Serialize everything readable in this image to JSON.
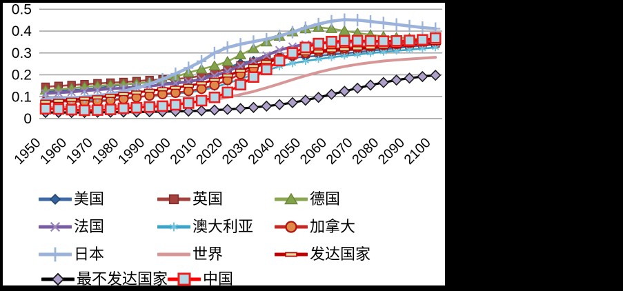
{
  "colors": {
    "page_background": "#000000",
    "panel_background": "#ffffff",
    "gridline": "#9a9a9a",
    "axis_text": "#000000"
  },
  "chart_data": {
    "type": "line",
    "title": "",
    "xlabel": "",
    "ylabel": "",
    "ylim": [
      0,
      0.5
    ],
    "grid": "horizontal-only",
    "legend_position": "bottom",
    "x": [
      1950,
      1955,
      1960,
      1965,
      1970,
      1975,
      1980,
      1985,
      1990,
      1995,
      2000,
      2005,
      2010,
      2015,
      2020,
      2025,
      2030,
      2035,
      2040,
      2045,
      2050,
      2055,
      2060,
      2065,
      2070,
      2075,
      2080,
      2085,
      2090,
      2095,
      2100
    ],
    "x_tick_labels": [
      "1950",
      "1960",
      "1970",
      "1980",
      "1990",
      "2000",
      "2010",
      "2020",
      "2030",
      "2040",
      "2050",
      "2060",
      "2070",
      "2080",
      "2090",
      "2100"
    ],
    "y_ticks": [
      0,
      0.1,
      0.2,
      0.3,
      0.4,
      0.5
    ],
    "y_tick_labels": [
      "0",
      "0.1",
      "0.2",
      "0.3",
      "0.4",
      "0.5"
    ],
    "series": [
      {
        "id": "usa",
        "name": "美国",
        "line_color": "#3E6BA5",
        "line_width": 2.6,
        "marker": {
          "shape": "diamond",
          "fill": "#33619E",
          "stroke": "#23476F",
          "stroke_width": 1.4,
          "size": 6
        },
        "values": [
          0.123,
          0.127,
          0.131,
          0.134,
          0.14,
          0.147,
          0.156,
          0.161,
          0.166,
          0.164,
          0.163,
          0.168,
          0.184,
          0.208,
          0.232,
          0.254,
          0.265,
          0.271,
          0.275,
          0.278,
          0.282,
          0.287,
          0.292,
          0.298,
          0.304,
          0.31,
          0.316,
          0.322,
          0.328,
          0.333,
          0.338
        ]
      },
      {
        "id": "uk",
        "name": "英国",
        "line_color": "#A6423E",
        "line_width": 2.6,
        "marker": {
          "shape": "square",
          "fill": "#A6423E",
          "stroke": "#7E2F2C",
          "stroke_width": 1.4,
          "size": 5.5
        },
        "values": [
          0.145,
          0.149,
          0.153,
          0.157,
          0.161,
          0.164,
          0.167,
          0.171,
          0.176,
          0.179,
          0.181,
          0.186,
          0.196,
          0.211,
          0.228,
          0.243,
          0.258,
          0.27,
          0.28,
          0.289,
          0.296,
          0.302,
          0.307,
          0.311,
          0.315,
          0.319,
          0.324,
          0.329,
          0.334,
          0.339,
          0.344
        ]
      },
      {
        "id": "germany",
        "name": "德国",
        "line_color": "#8AA64F",
        "line_width": 2.6,
        "marker": {
          "shape": "triangle",
          "fill": "#84A24A",
          "stroke": "#69853A",
          "stroke_width": 1.2,
          "size": 7
        },
        "values": [
          0.13,
          0.134,
          0.139,
          0.145,
          0.15,
          0.154,
          0.157,
          0.161,
          0.166,
          0.176,
          0.191,
          0.21,
          0.226,
          0.241,
          0.261,
          0.291,
          0.32,
          0.35,
          0.376,
          0.396,
          0.41,
          0.417,
          0.411,
          0.401,
          0.391,
          0.383,
          0.376,
          0.371,
          0.367,
          0.363,
          0.36
        ]
      },
      {
        "id": "france",
        "name": "法国",
        "line_color": "#7A5DA0",
        "line_width": 4,
        "marker": {
          "shape": "xcross",
          "fill": "none",
          "stroke": "#9A86BC",
          "stroke_width": 2,
          "size": 5.5
        },
        "values": [
          0.115,
          0.118,
          0.122,
          0.127,
          0.132,
          0.136,
          0.14,
          0.144,
          0.149,
          0.155,
          0.162,
          0.169,
          0.179,
          0.196,
          0.216,
          0.24,
          0.264,
          0.289,
          0.313,
          0.329,
          0.339,
          0.344,
          0.347,
          0.349,
          0.35,
          0.35,
          0.35,
          0.351,
          0.352,
          0.353,
          0.354
        ]
      },
      {
        "id": "australia",
        "name": "澳大利亚",
        "line_color": "#3BA4C7",
        "line_width": 2.6,
        "marker": {
          "shape": "asterisk",
          "fill": "none",
          "stroke": "#6FC3DE",
          "stroke_width": 1.8,
          "size": 5.5
        },
        "values": [
          0.085,
          0.086,
          0.086,
          0.085,
          0.084,
          0.087,
          0.092,
          0.098,
          0.105,
          0.11,
          0.114,
          0.12,
          0.129,
          0.143,
          0.161,
          0.181,
          0.201,
          0.221,
          0.238,
          0.252,
          0.263,
          0.272,
          0.28,
          0.287,
          0.293,
          0.299,
          0.305,
          0.31,
          0.315,
          0.32,
          0.325
        ]
      },
      {
        "id": "canada",
        "name": "加拿大",
        "line_color": "#C42A23",
        "line_width": 2.6,
        "marker": {
          "shape": "circle",
          "fill": "#E08A4A",
          "stroke": "#B01513",
          "stroke_width": 2,
          "size": 6.5
        },
        "values": [
          0.077,
          0.078,
          0.078,
          0.077,
          0.079,
          0.083,
          0.09,
          0.097,
          0.105,
          0.112,
          0.118,
          0.126,
          0.136,
          0.153,
          0.176,
          0.203,
          0.229,
          0.253,
          0.273,
          0.289,
          0.301,
          0.311,
          0.318,
          0.323,
          0.328,
          0.332,
          0.337,
          0.342,
          0.348,
          0.355,
          0.362
        ]
      },
      {
        "id": "japan",
        "name": "日本",
        "line_color": "#9BB3DA",
        "line_width": 4.5,
        "marker": {
          "shape": "plus",
          "fill": "none",
          "stroke": "#9BB3DA",
          "stroke_width": 2.4,
          "size": 9
        },
        "values": [
          0.09,
          0.092,
          0.095,
          0.099,
          0.105,
          0.113,
          0.125,
          0.14,
          0.158,
          0.18,
          0.205,
          0.232,
          0.262,
          0.3,
          0.325,
          0.34,
          0.352,
          0.363,
          0.378,
          0.395,
          0.415,
          0.432,
          0.445,
          0.452,
          0.45,
          0.444,
          0.437,
          0.43,
          0.423,
          0.416,
          0.411
        ]
      },
      {
        "id": "world",
        "name": "世界",
        "line_color": "#D89797",
        "line_width": 4,
        "marker": {
          "shape": "none",
          "fill": "none",
          "stroke": "none",
          "stroke_width": 0,
          "size": 0
        },
        "values": [
          0.05,
          0.051,
          0.052,
          0.053,
          0.054,
          0.056,
          0.058,
          0.06,
          0.062,
          0.065,
          0.068,
          0.073,
          0.079,
          0.087,
          0.097,
          0.11,
          0.124,
          0.141,
          0.159,
          0.178,
          0.196,
          0.212,
          0.226,
          0.238,
          0.248,
          0.256,
          0.263,
          0.268,
          0.272,
          0.276,
          0.28
        ]
      },
      {
        "id": "developed",
        "name": "发达国家",
        "line_color": "#C00000",
        "line_width": 3.2,
        "marker": {
          "shape": "dash",
          "fill": "#CFE0A2",
          "stroke": "#C00000",
          "stroke_width": 1.5,
          "size": 7
        },
        "values": [
          0.077,
          0.081,
          0.086,
          0.091,
          0.097,
          0.104,
          0.112,
          0.119,
          0.127,
          0.134,
          0.141,
          0.15,
          0.161,
          0.177,
          0.197,
          0.219,
          0.24,
          0.259,
          0.275,
          0.288,
          0.298,
          0.306,
          0.312,
          0.317,
          0.321,
          0.325,
          0.329,
          0.333,
          0.337,
          0.341,
          0.345
        ]
      },
      {
        "id": "least-developed",
        "name": "最不发达国家",
        "line_color": "#000000",
        "line_width": 3.2,
        "marker": {
          "shape": "diamond",
          "fill": "#AFA0CB",
          "stroke": "#1A1A1A",
          "stroke_width": 1.6,
          "size": 7
        },
        "values": [
          0.028,
          0.028,
          0.028,
          0.028,
          0.029,
          0.029,
          0.03,
          0.03,
          0.031,
          0.032,
          0.033,
          0.034,
          0.036,
          0.039,
          0.042,
          0.046,
          0.051,
          0.057,
          0.064,
          0.073,
          0.084,
          0.097,
          0.111,
          0.125,
          0.139,
          0.153,
          0.165,
          0.176,
          0.185,
          0.192,
          0.198
        ]
      },
      {
        "id": "china",
        "name": "中国",
        "line_color": "#FF0000",
        "line_width": 3,
        "marker": {
          "shape": "square",
          "fill": "#B5D8E6",
          "stroke": "#EE1C1C",
          "stroke_width": 2.6,
          "size": 7
        },
        "values": [
          0.045,
          0.044,
          0.041,
          0.038,
          0.039,
          0.042,
          0.047,
          0.05,
          0.053,
          0.057,
          0.063,
          0.071,
          0.082,
          0.097,
          0.12,
          0.155,
          0.19,
          0.225,
          0.265,
          0.3,
          0.325,
          0.343,
          0.352,
          0.355,
          0.356,
          0.355,
          0.354,
          0.355,
          0.357,
          0.36,
          0.368
        ]
      }
    ]
  }
}
